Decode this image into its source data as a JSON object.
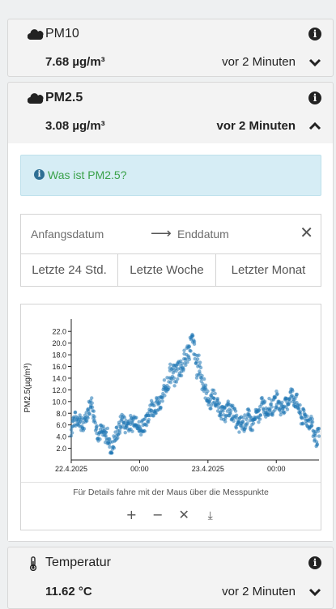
{
  "sensors": [
    {
      "name": "PM10",
      "value": "7.68 µg/m³",
      "updated": "vor 2 Minuten"
    },
    {
      "name": "PM2.5",
      "value": "3.08 µg/m³",
      "updated": "vor 2 Minuten"
    },
    {
      "name": "Temperatur",
      "value": "11.62 °C",
      "updated": "vor 2 Minuten"
    }
  ],
  "info_link": "Was ist PM2.5?",
  "date_range": {
    "start_placeholder": "Anfangsdatum",
    "end_placeholder": "Enddatum",
    "quick": [
      "Letzte 24 Std.",
      "Letzte Woche",
      "Letzter Monat"
    ]
  },
  "chart_hint": "Für Details fahre mit der Maus über die Messpunkte",
  "icons": {
    "cloud": "cloud-icon",
    "info": "info-circle-icon",
    "chevron_down": "chevron-down-icon",
    "chevron_up": "chevron-up-icon",
    "thermometer": "thermometer-icon",
    "clear": "close-icon",
    "arrow": "arrow-right-icon"
  },
  "colors": {
    "accent": "#1f77b4",
    "alert_bg": "#d6edf5",
    "alert_text": "#3aa14a"
  },
  "chart_data": {
    "type": "scatter",
    "ylabel": "PM2.5(µg/m³)",
    "y_ticks": [
      "2.0",
      "4.0",
      "6.0",
      "8.0",
      "10.0",
      "12.0",
      "14.0",
      "16.0",
      "18.0",
      "20.0",
      "22.0"
    ],
    "x_ticks": [
      "22.4.2025",
      "00:00",
      "23.4.2025",
      "00:00"
    ],
    "x_tick_hours": [
      0,
      12,
      24,
      36
    ],
    "ylim": [
      0,
      23
    ],
    "xlim_hours": [
      0,
      43.5
    ],
    "x_unit": "hours since 22.4.2025 00:00",
    "trend": [
      [
        0,
        5.2
      ],
      [
        1,
        7
      ],
      [
        2,
        6.5
      ],
      [
        3,
        8
      ],
      [
        3.5,
        10
      ],
      [
        4,
        7
      ],
      [
        5,
        5
      ],
      [
        6,
        4
      ],
      [
        7,
        2
      ],
      [
        8,
        5
      ],
      [
        9,
        6
      ],
      [
        10,
        6.5
      ],
      [
        11,
        7
      ],
      [
        12,
        5
      ],
      [
        13,
        7
      ],
      [
        14,
        8.5
      ],
      [
        15,
        9
      ],
      [
        16,
        11
      ],
      [
        17,
        13.5
      ],
      [
        18,
        15
      ],
      [
        19,
        16
      ],
      [
        20,
        16
      ],
      [
        20.5,
        19
      ],
      [
        21,
        20.5
      ],
      [
        21.5,
        20
      ],
      [
        22,
        16
      ],
      [
        23,
        14
      ],
      [
        23.5,
        12
      ],
      [
        24,
        11
      ],
      [
        25,
        10
      ],
      [
        26,
        8.8
      ],
      [
        27,
        8.5
      ],
      [
        28,
        8
      ],
      [
        29,
        7
      ],
      [
        30,
        6
      ],
      [
        31,
        6.5
      ],
      [
        32,
        7
      ],
      [
        33,
        8
      ],
      [
        34,
        9
      ],
      [
        35,
        9.5
      ],
      [
        36,
        9.5
      ],
      [
        37,
        9
      ],
      [
        38,
        10.5
      ],
      [
        39,
        10.5
      ],
      [
        40,
        9
      ],
      [
        41,
        7
      ],
      [
        42,
        6
      ],
      [
        43,
        4.5
      ],
      [
        43.5,
        4
      ]
    ],
    "points_per_hour": 8,
    "spread": 1.4
  }
}
